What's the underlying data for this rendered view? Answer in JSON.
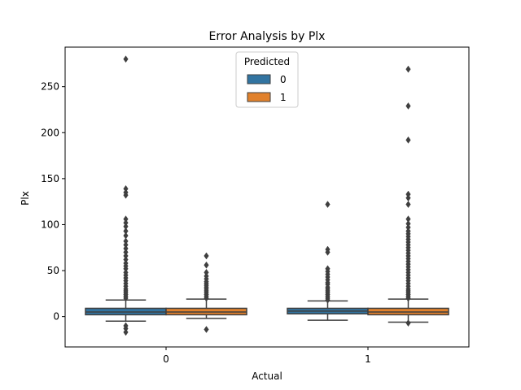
{
  "chart_data": {
    "type": "box",
    "title": "Error Analysis by Plx",
    "xlabel": "Actual",
    "ylabel": "Plx",
    "categories": [
      "0",
      "1"
    ],
    "legend": {
      "title": "Predicted",
      "placement": "top-center",
      "entries": [
        "0",
        "1"
      ]
    },
    "ylim": [
      -33,
      293
    ],
    "yticks": [
      0,
      50,
      100,
      150,
      200,
      250
    ],
    "ytick_labels": [
      "0",
      "50",
      "100",
      "150",
      "200",
      "250"
    ],
    "series": [
      {
        "name": "0",
        "color": "#3274a1",
        "boxes": [
          {
            "category": "0",
            "whisker_low": -5,
            "q1": 2,
            "median": 5,
            "q3": 9,
            "whisker_high": 18,
            "outliers": [
              280,
              139,
              135,
              132,
              106,
              102,
              98,
              93,
              88,
              82,
              78,
              74,
              70,
              66,
              62,
              58,
              55,
              52,
              48,
              45,
              42,
              39,
              36,
              33,
              30,
              28,
              26,
              24,
              22,
              20,
              -10,
              -13,
              -17
            ]
          },
          {
            "category": "1",
            "whisker_low": -4,
            "q1": 3,
            "median": 6,
            "q3": 9,
            "whisker_high": 17,
            "outliers": [
              122,
              73,
              70,
              52,
              49,
              46,
              43,
              40,
              37,
              35,
              32,
              30,
              28,
              26,
              24,
              22,
              20,
              18
            ]
          }
        ]
      },
      {
        "name": "1",
        "color": "#e1812c",
        "boxes": [
          {
            "category": "0",
            "whisker_low": -2,
            "q1": 2,
            "median": 5,
            "q3": 9,
            "whisker_high": 19,
            "outliers": [
              66,
              56,
              48,
              44,
              41,
              38,
              36,
              34,
              32,
              30,
              28,
              26,
              24,
              22,
              20,
              -14
            ]
          },
          {
            "category": "1",
            "whisker_low": -6,
            "q1": 2,
            "median": 5,
            "q3": 9,
            "whisker_high": 19,
            "outliers": [
              269,
              229,
              192,
              133,
              129,
              122,
              106,
              101,
              97,
              93,
              90,
              87,
              84,
              81,
              78,
              75,
              72,
              69,
              66,
              63,
              60,
              57,
              54,
              51,
              48,
              45,
              42,
              39,
              36,
              33,
              30,
              28,
              26,
              24,
              22,
              20,
              -7
            ]
          }
        ]
      }
    ]
  }
}
